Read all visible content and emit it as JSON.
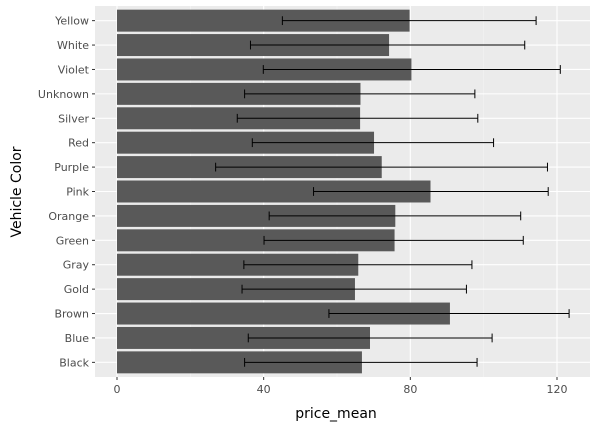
{
  "chart_data": {
    "type": "bar",
    "orientation": "horizontal",
    "xlabel": "price_mean",
    "ylabel": "Vehicle Color",
    "xlim": [
      -6,
      129
    ],
    "x_ticks": [
      0,
      40,
      80,
      120
    ],
    "x_tick_labels": [
      "0",
      "40",
      "80",
      "120"
    ],
    "grid": true,
    "categories": [
      "Black",
      "Blue",
      "Brown",
      "Gold",
      "Gray",
      "Green",
      "Orange",
      "Pink",
      "Purple",
      "Red",
      "Silver",
      "Unknown",
      "Violet",
      "White",
      "Yellow"
    ],
    "values": [
      66.8,
      69.0,
      90.8,
      64.9,
      65.8,
      75.7,
      75.9,
      85.5,
      72.2,
      70.1,
      66.3,
      66.4,
      80.3,
      74.2,
      79.8
    ],
    "error_low": [
      34.8,
      35.8,
      57.8,
      34.1,
      34.6,
      40.1,
      41.5,
      53.6,
      26.9,
      36.9,
      32.8,
      34.8,
      39.9,
      36.4,
      45.1
    ],
    "error_high": [
      98.2,
      102.3,
      123.3,
      95.3,
      96.8,
      110.8,
      110.1,
      117.6,
      117.4,
      102.7,
      98.4,
      97.6,
      120.9,
      111.2,
      114.3
    ],
    "colors": {
      "bar": "#595959",
      "panel": "#ebebeb",
      "grid_major": "#ffffff",
      "grid_minor": "#f5f5f5",
      "errorbar": "#000000",
      "tick_text": "#4d4d4d"
    }
  }
}
